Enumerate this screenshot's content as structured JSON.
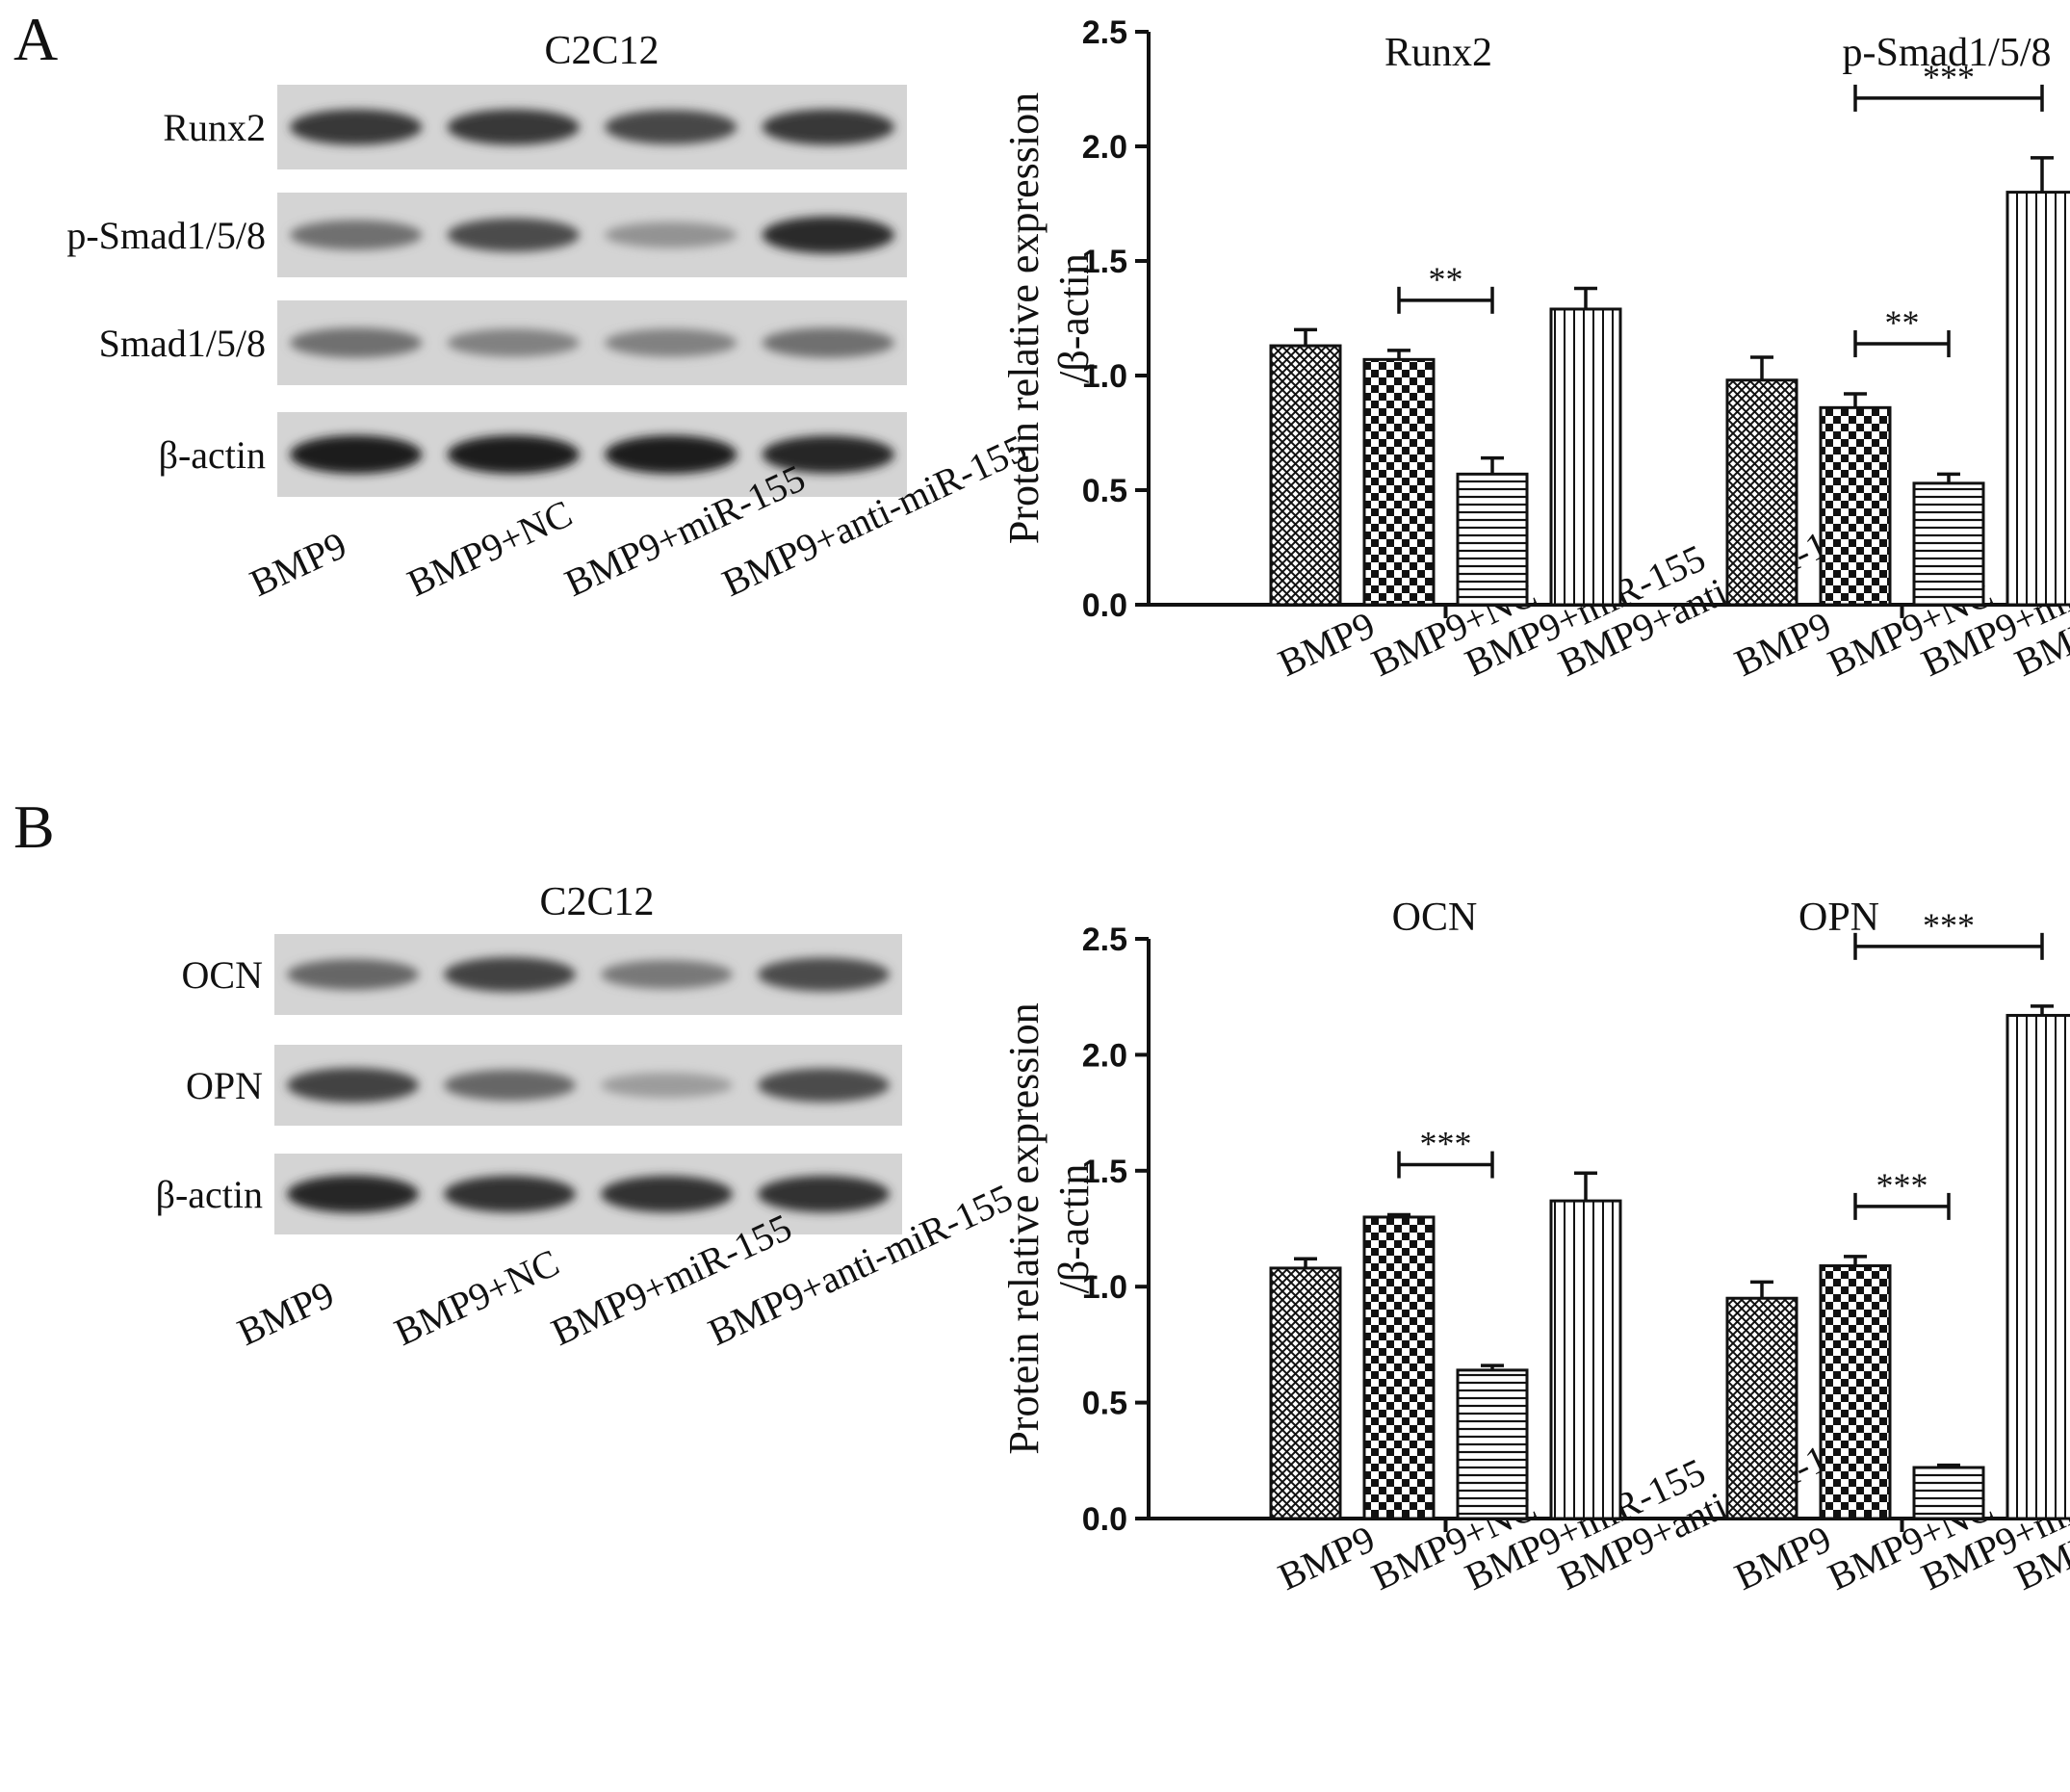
{
  "colors": {
    "ink": "#111111",
    "paper": "#ffffff"
  },
  "panels": [
    {
      "label": "A",
      "blot": {
        "title": "C2C12",
        "rows": [
          "Runx2",
          "p-Smad1/5/8",
          "Smad1/5/8",
          "β-actin"
        ],
        "lanes": [
          "BMP9",
          "BMP9+NC",
          "BMP9+miR-155",
          "BMP9+anti-miR-155"
        ],
        "band_intensity": [
          [
            0.85,
            0.85,
            0.78,
            0.85
          ],
          [
            0.55,
            0.75,
            0.35,
            0.92
          ],
          [
            0.55,
            0.45,
            0.45,
            0.55
          ],
          [
            1.0,
            1.0,
            1.0,
            0.95
          ]
        ]
      }
    },
    {
      "label": "B",
      "blot": {
        "title": "C2C12",
        "rows": [
          "OCN",
          "OPN",
          "β-actin"
        ],
        "lanes": [
          "BMP9",
          "BMP9+NC",
          "BMP9+miR-155",
          "BMP9+anti-miR-155"
        ],
        "band_intensity": [
          [
            0.6,
            0.8,
            0.5,
            0.75
          ],
          [
            0.8,
            0.6,
            0.3,
            0.75
          ],
          [
            0.95,
            0.9,
            0.9,
            0.9
          ]
        ]
      }
    }
  ],
  "chart_data": [
    {
      "type": "bar",
      "panel": "A",
      "ylabel_lines": [
        "Protein relative expression",
        "/β-actin"
      ],
      "ylim": [
        0,
        2.5
      ],
      "yticks": [
        "0.0",
        "0.5",
        "1.0",
        "1.5",
        "2.0",
        "2.5"
      ],
      "categories": [
        "BMP9",
        "BMP9+NC",
        "BMP9+miR-155",
        "BMP9+anti-miR-155"
      ],
      "patterns": [
        "crosshatch",
        "checker",
        "hlines",
        "vlines"
      ],
      "groups": [
        {
          "name": "Runx2",
          "values": [
            1.13,
            1.07,
            0.57,
            1.29
          ],
          "errors": [
            0.07,
            0.04,
            0.07,
            0.09
          ],
          "significance": [
            {
              "from": 1,
              "to": 2,
              "label": "**"
            }
          ]
        },
        {
          "name": "p-Smad1/5/8",
          "values": [
            0.98,
            0.86,
            0.53,
            1.8
          ],
          "errors": [
            0.1,
            0.06,
            0.04,
            0.15
          ],
          "significance": [
            {
              "from": 1,
              "to": 2,
              "label": "**"
            },
            {
              "from": 1,
              "to": 3,
              "label": "***"
            }
          ]
        }
      ]
    },
    {
      "type": "bar",
      "panel": "B",
      "ylabel_lines": [
        "Protein relative expression",
        "/β-actin"
      ],
      "ylim": [
        0,
        2.5
      ],
      "yticks": [
        "0.0",
        "0.5",
        "1.0",
        "1.5",
        "2.0",
        "2.5"
      ],
      "categories": [
        "BMP9",
        "BMP9+NC",
        "BMP9+miR-155",
        "BMP9+anti-miR-155"
      ],
      "patterns": [
        "crosshatch",
        "checker",
        "hlines",
        "vlines"
      ],
      "groups": [
        {
          "name": "OCN",
          "values": [
            1.08,
            1.3,
            0.64,
            1.37
          ],
          "errors": [
            0.04,
            0.01,
            0.02,
            0.12
          ],
          "significance": [
            {
              "from": 1,
              "to": 2,
              "label": "***"
            }
          ]
        },
        {
          "name": "OPN",
          "values": [
            0.95,
            1.09,
            0.22,
            2.17
          ],
          "errors": [
            0.07,
            0.04,
            0.01,
            0.04
          ],
          "significance": [
            {
              "from": 1,
              "to": 2,
              "label": "***"
            },
            {
              "from": 1,
              "to": 3,
              "label": "***"
            }
          ]
        }
      ]
    }
  ]
}
